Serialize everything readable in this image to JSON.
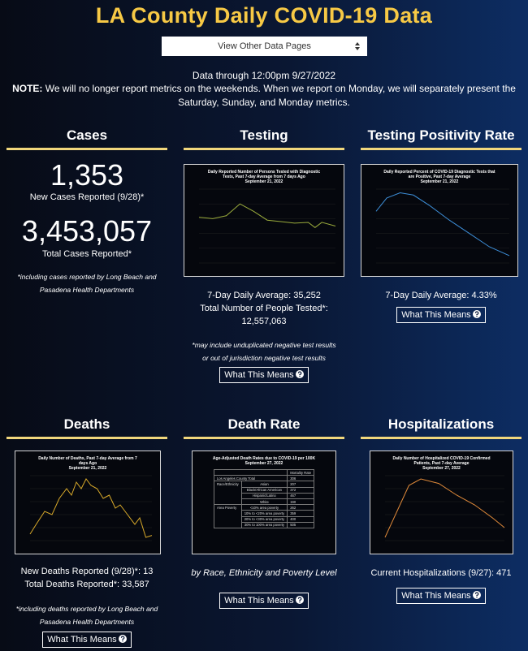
{
  "header": {
    "title": "LA County Daily COVID-19 Data",
    "dropdown": "View Other Data Pages",
    "data_through": "Data through 12:00pm 9/27/2022",
    "note_label": "NOTE:",
    "note": "We will no longer report metrics on the weekends. When we report on Monday, we will separately present the Saturday, Sunday, and Monday metrics."
  },
  "sections": [
    {
      "heading": "Cases",
      "big1": "1,353",
      "label1": "New Cases Reported (9/28)*",
      "big2": "3,453,057",
      "label2": "Total Cases Reported*",
      "note": "*including cases reported by Long Beach and Pasadena Health Departments"
    },
    {
      "heading": "Testing",
      "chart_title": "Daily Reported Number of Persons Tested with Diagnostic Tests, Past 7-day Average from 7 days Ago",
      "chart_date": "September 21, 2022",
      "lines": [
        "7-Day Daily Average: 35,252",
        "Total Number of People Tested*:",
        "12,557,063"
      ],
      "note": "*may include unduplicated negative test results or out of jurisdiction negative test results",
      "button": "What This Means"
    },
    {
      "heading": "Testing Positivity Rate",
      "chart_title": "Daily Reported Percent of COVID-19 Diagnostic Tests that are Positive, Past 7-day Average",
      "chart_date": "September 21, 2022",
      "lines": [
        "7-Day Daily Average: 4.33%"
      ],
      "button": "What This Means"
    },
    {
      "heading": "Deaths",
      "chart_title": "Daily Number of Deaths, Past 7-day Average from 7 days Ago",
      "chart_date": "September 21, 2022",
      "lines": [
        "New Deaths Reported (9/28)*: 13",
        "Total Deaths Reported*: 33,587"
      ],
      "note": "*including deaths reported by Long Beach and Pasadena Health Departments",
      "button": "What This Means"
    },
    {
      "heading": "Death Rate",
      "chart_title": "Age-Adjusted Death Rates due to COVID-19 per 100K",
      "chart_date": "September 27, 2022",
      "table": {
        "column": "Mortality Rate",
        "total": {
          "label": "Los Angeles County Total",
          "value": "306"
        },
        "groups": [
          {
            "name": "Race/Ethnicity",
            "rows": [
              [
                "Asian",
                "207"
              ],
              [
                "Black/African American",
                "372"
              ],
              [
                "Hispanic/Latino",
                "467"
              ],
              [
                "White",
                "190"
              ]
            ]
          },
          {
            "name": "Area Poverty",
            "rows": [
              [
                "<10% area poverty",
                "262"
              ],
              [
                "10% to <20% area poverty",
                "359"
              ],
              [
                "20% to <30% area poverty",
                "400"
              ],
              [
                "30% to 100% area poverty",
                "505"
              ]
            ]
          }
        ]
      },
      "caption": "by Race, Ethnicity and Poverty Level",
      "button": "What This Means"
    },
    {
      "heading": "Hospitalizations",
      "chart_title": "Daily Number of Hospitalized COVID-19 Confirmed Patients, Past 7-day Average",
      "chart_date": "September 27, 2022",
      "lines": [
        "Current Hospitalizations (9/27): 471"
      ],
      "button": "What This Means"
    }
  ]
}
